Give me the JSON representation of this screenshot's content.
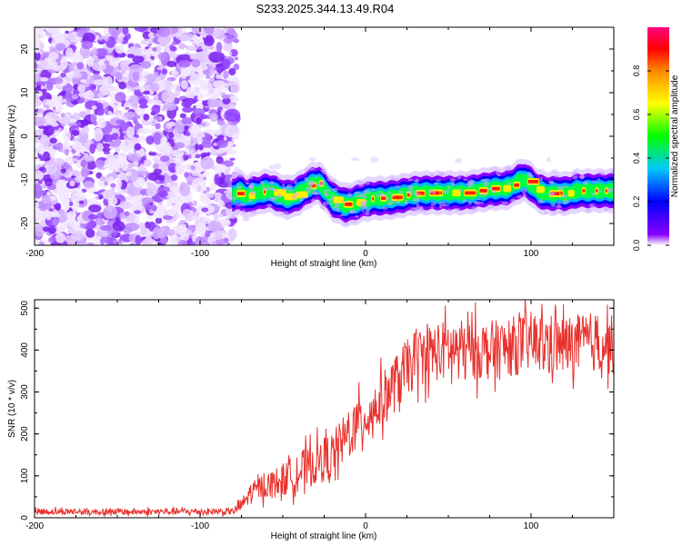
{
  "title": "S233.2025.344.13.49.R04",
  "chart_data": [
    {
      "type": "heatmap",
      "name": "spectrogram",
      "xlabel": "Height of straight line (km)",
      "ylabel": "Frequency (Hz)",
      "xlim": [
        -200,
        150
      ],
      "ylim": [
        -25,
        25
      ],
      "x_ticks": [
        -200,
        -100,
        0,
        100
      ],
      "y_ticks": [
        -20,
        -10,
        0,
        10,
        20
      ],
      "noise_region_x": [
        -200,
        -78
      ],
      "signal_start_x": -80,
      "trace": {
        "x": [
          -80,
          -76,
          -72,
          -68,
          -64,
          -60,
          -56,
          -52,
          -48,
          -44,
          -40,
          -36,
          -32,
          -28,
          -24,
          -20,
          -16,
          -12,
          -8,
          -4,
          0,
          4,
          8,
          12,
          16,
          20,
          24,
          28,
          32,
          36,
          40,
          44,
          48,
          52,
          56,
          60,
          64,
          68,
          72,
          76,
          80,
          84,
          88,
          92,
          96,
          100,
          104,
          108,
          112,
          116,
          120,
          124,
          128,
          132,
          136,
          140,
          144,
          150
        ],
        "y": [
          -13.5,
          -12.8,
          -13.8,
          -13.2,
          -13.0,
          -12.5,
          -12.8,
          -13.5,
          -14.0,
          -13.8,
          -13.0,
          -12.0,
          -11.0,
          -10.8,
          -12.5,
          -14.5,
          -15.2,
          -15.8,
          -15.5,
          -15.0,
          -14.5,
          -14.3,
          -14.2,
          -14.2,
          -14.0,
          -13.8,
          -13.5,
          -13.2,
          -13.0,
          -13.0,
          -13.0,
          -13.0,
          -13.0,
          -13.0,
          -13.0,
          -13.0,
          -12.8,
          -12.5,
          -12.3,
          -12.0,
          -12.0,
          -12.0,
          -11.5,
          -10.5,
          -10.0,
          -11.0,
          -12.5,
          -13.0,
          -13.2,
          -13.0,
          -13.2,
          -13.0,
          -12.5,
          -12.5,
          -12.5,
          -12.5,
          -12.5,
          -12.5
        ]
      },
      "colorbar": {
        "label": "Normalized spectral amplitude",
        "range": [
          0.0,
          1.0
        ],
        "ticks": [
          "0.0",
          "0.2",
          "0.4",
          "0.6",
          "0.8"
        ],
        "colors": [
          "#ffffff",
          "#8a00ff",
          "#0000ff",
          "#00c8ff",
          "#00ff00",
          "#ffff00",
          "#ff8800",
          "#ff0000",
          "#ff0080"
        ]
      }
    },
    {
      "type": "line",
      "name": "snr",
      "xlabel": "Height of straight line (km)",
      "ylabel": "SNR (10 * v/v)",
      "xlim": [
        -200,
        150
      ],
      "ylim": [
        0,
        520
      ],
      "x_ticks": [
        -200,
        -100,
        0,
        100
      ],
      "y_ticks": [
        0,
        100,
        200,
        300,
        400,
        500
      ],
      "color": "#e8322e",
      "trend": {
        "x": [
          -200,
          -150,
          -100,
          -80,
          -75,
          -70,
          -65,
          -60,
          -50,
          -40,
          -30,
          -20,
          -10,
          0,
          10,
          20,
          30,
          40,
          50,
          60,
          80,
          100,
          120,
          140,
          150
        ],
        "y": [
          15,
          14,
          15,
          15,
          30,
          55,
          70,
          75,
          90,
          110,
          130,
          150,
          200,
          240,
          280,
          330,
          380,
          395,
          400,
          400,
          400,
          420,
          410,
          420,
          410
        ]
      },
      "noise_amplitude": {
        "x": [
          -200,
          -80,
          -70,
          -40,
          0,
          40,
          80,
          150
        ],
        "y": [
          10,
          10,
          30,
          60,
          80,
          90,
          90,
          90
        ]
      }
    }
  ]
}
